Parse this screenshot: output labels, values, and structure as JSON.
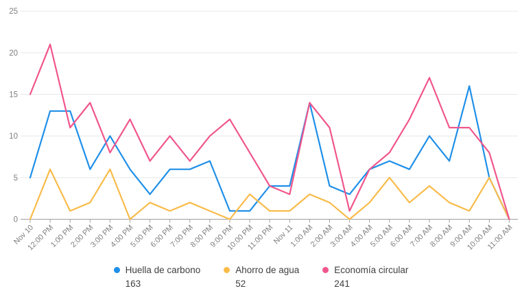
{
  "chart_data": {
    "type": "line",
    "title": "",
    "xlabel": "",
    "ylabel": "",
    "ylim": [
      0,
      25
    ],
    "y_ticks": [
      0,
      5,
      10,
      15,
      20,
      25
    ],
    "grid": "horizontal",
    "legend_position": "bottom",
    "x_categories": [
      "Nov 10",
      "12:00 PM",
      "1:00 PM",
      "2:00 PM",
      "3:00 PM",
      "4:00 PM",
      "5:00 PM",
      "6:00 PM",
      "7:00 PM",
      "8:00 PM",
      "9:00 PM",
      "10:00 PM",
      "11:00 PM",
      "Nov 11",
      "1:00 AM",
      "2:00 AM",
      "3:00 AM",
      "4:00 AM",
      "5:00 AM",
      "6:00 AM",
      "7:00 AM",
      "8:00 AM",
      "9:00 AM",
      "10:00 AM",
      "11:00 AM"
    ],
    "series": [
      {
        "name": "Huella de carbono",
        "total": 163,
        "color": "#1E8FE8",
        "values": [
          5,
          13,
          13,
          6,
          10,
          6,
          3,
          6,
          6,
          7,
          1,
          1,
          4,
          4,
          14,
          4,
          3,
          6,
          7,
          6,
          10,
          7,
          16,
          5,
          0
        ]
      },
      {
        "name": "Ahorro de agua",
        "total": 52,
        "color": "#F9BB49",
        "values": [
          0,
          6,
          1,
          2,
          6,
          0,
          2,
          1,
          2,
          1,
          0,
          3,
          1,
          1,
          3,
          2,
          0,
          2,
          5,
          2,
          4,
          2,
          1,
          5,
          0
        ]
      },
      {
        "name": "Economía circular",
        "total": 241,
        "color": "#F0558C",
        "values": [
          15,
          21,
          11,
          14,
          8,
          12,
          7,
          10,
          7,
          10,
          12,
          8,
          4,
          3,
          14,
          11,
          1,
          6,
          8,
          12,
          17,
          11,
          11,
          8,
          0
        ]
      }
    ],
    "style_colors": {
      "gridline": "#E8E8E8",
      "axis_line": "#9E9E9E",
      "axis_text": "#7E7E7E",
      "legend_text": "#3F3F3F"
    }
  }
}
